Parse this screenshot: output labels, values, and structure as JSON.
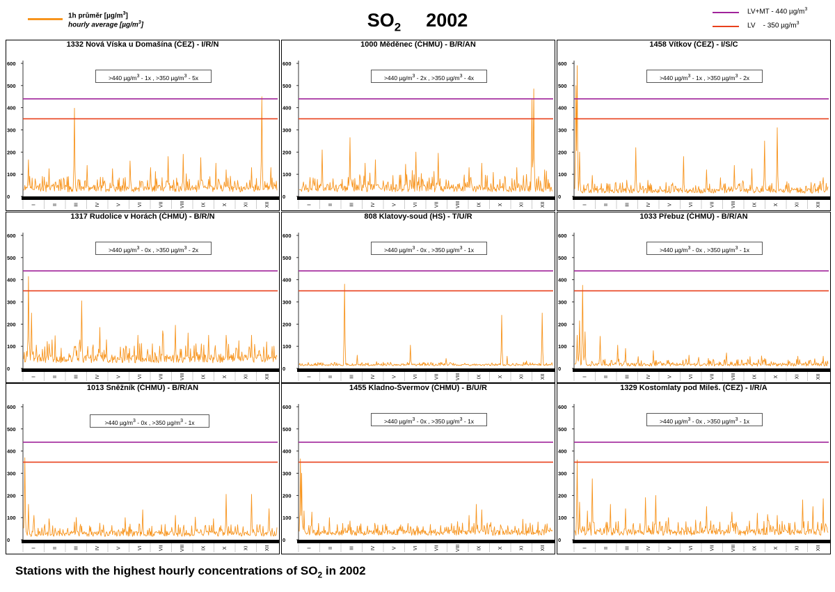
{
  "header": {
    "title_main": "SO",
    "title_sub": "2",
    "title_year": "2002"
  },
  "legend_left": {
    "line1_prefix": "1h průměr [µg/m",
    "line1_sup": "3",
    "line1_suffix": "]",
    "line2_prefix": "hourly average [µg/m",
    "line2_sup": "3",
    "line2_suffix": "]",
    "color": "#f7941d"
  },
  "legend_right": {
    "items": [
      {
        "prefix": "LV+MT - 440 µg/m",
        "sup": "3",
        "color": "#a0239a"
      },
      {
        "prefix": "LV    - 350 µg/m",
        "sup": "3",
        "color": "#e8401c"
      }
    ]
  },
  "caption": {
    "prefix": "Stations with the highest hourly concentrations of SO",
    "sub": "2",
    "suffix": " in 2002"
  },
  "chart_data": {
    "type": "line",
    "y_ticks": [
      "0",
      "100",
      "200",
      "300",
      "400",
      "500",
      "600"
    ],
    "ylim": [
      0,
      600
    ],
    "month_labels": [
      "I",
      "II",
      "III",
      "IV",
      "V",
      "VI",
      "VII",
      "VIII",
      "IX",
      "X",
      "XI",
      "XII"
    ],
    "limit_lines": [
      {
        "name": "LV+MT - 440 µg/m3",
        "value": 440,
        "color": "#a0239a"
      },
      {
        "name": "LV - 350 µg/m3",
        "value": 350,
        "color": "#e8401c"
      }
    ],
    "series_color": "#f7941d",
    "panels": [
      {
        "title": "1332 Nová Víska u Domašína (ČEZ) - I/R/N",
        "box": [
          ">440 µg/m",
          "3",
          " - 1x  ,  >350 µg/m",
          "3",
          " - 5x"
        ],
        "base": 20,
        "noise": 45,
        "peaks": [
          [
            0.02,
            165
          ],
          [
            0.1,
            125
          ],
          [
            0.2,
            398
          ],
          [
            0.25,
            140
          ],
          [
            0.35,
            125
          ],
          [
            0.42,
            160
          ],
          [
            0.5,
            130
          ],
          [
            0.57,
            180
          ],
          [
            0.63,
            190
          ],
          [
            0.7,
            175
          ],
          [
            0.76,
            150
          ],
          [
            0.8,
            120
          ],
          [
            0.9,
            130
          ],
          [
            0.94,
            450
          ],
          [
            0.975,
            130
          ]
        ]
      },
      {
        "title": "1000 Měděnec (ČHMÚ) - B/R/AN",
        "box": [
          ">440 µg/m",
          "3",
          " - 2x  ,  >350 µg/m",
          "3",
          " - 4x"
        ],
        "base": 20,
        "noise": 50,
        "peaks": [
          [
            0.09,
            210
          ],
          [
            0.2,
            265
          ],
          [
            0.26,
            150
          ],
          [
            0.3,
            165
          ],
          [
            0.42,
            145
          ],
          [
            0.46,
            200
          ],
          [
            0.55,
            195
          ],
          [
            0.67,
            130
          ],
          [
            0.72,
            150
          ],
          [
            0.86,
            130
          ],
          [
            0.92,
            440
          ],
          [
            0.925,
            485
          ],
          [
            0.97,
            120
          ]
        ]
      },
      {
        "title": "1458 Vítkov (ČEZ) - I/S/C",
        "box": [
          ">440 µg/m",
          "3",
          " - 1x  ,  >350 µg/m",
          "3",
          " - 2x"
        ],
        "base": 15,
        "noise": 30,
        "peaks": [
          [
            0.005,
            500
          ],
          [
            0.01,
            590
          ],
          [
            0.02,
            200
          ],
          [
            0.07,
            95
          ],
          [
            0.24,
            220
          ],
          [
            0.43,
            180
          ],
          [
            0.52,
            120
          ],
          [
            0.63,
            140
          ],
          [
            0.7,
            125
          ],
          [
            0.75,
            250
          ],
          [
            0.8,
            310
          ],
          [
            0.98,
            85
          ]
        ]
      },
      {
        "title": "1317 Rudolice v Horách (ČHMÚ) - B/R/N",
        "box": [
          ">440 µg/m",
          "3",
          " - 0x  ,  >350 µg/m",
          "3",
          " - 2x"
        ],
        "base": 25,
        "noise": 55,
        "peaks": [
          [
            0.02,
            415
          ],
          [
            0.03,
            250
          ],
          [
            0.1,
            110
          ],
          [
            0.23,
            305
          ],
          [
            0.3,
            185
          ],
          [
            0.45,
            150
          ],
          [
            0.55,
            170
          ],
          [
            0.6,
            195
          ],
          [
            0.65,
            160
          ],
          [
            0.73,
            150
          ],
          [
            0.8,
            150
          ],
          [
            0.85,
            125
          ],
          [
            0.9,
            150
          ],
          [
            0.96,
            120
          ]
        ]
      },
      {
        "title": "808 Klatovy-soud (HS) - T/U/R",
        "box": [
          ">440 µg/m",
          "3",
          " - 0x  ,  >350 µg/m",
          "3",
          " - 1x"
        ],
        "base": 12,
        "noise": 10,
        "peaks": [
          [
            0.18,
            380
          ],
          [
            0.23,
            60
          ],
          [
            0.44,
            105
          ],
          [
            0.58,
            45
          ],
          [
            0.8,
            240
          ],
          [
            0.82,
            55
          ],
          [
            0.96,
            250
          ]
        ]
      },
      {
        "title": "1033 Přebuz (ČHMÚ) - B/R/AN",
        "box": [
          ">440 µg/m",
          "3",
          " - 0x  ,  >350 µg/m",
          "3",
          " - 1x"
        ],
        "base": 10,
        "noise": 20,
        "peaks": [
          [
            0.01,
            150
          ],
          [
            0.02,
            215
          ],
          [
            0.03,
            375
          ],
          [
            0.04,
            165
          ],
          [
            0.1,
            145
          ],
          [
            0.17,
            105
          ],
          [
            0.2,
            90
          ],
          [
            0.31,
            80
          ],
          [
            0.45,
            60
          ],
          [
            0.6,
            70
          ],
          [
            0.75,
            45
          ],
          [
            0.88,
            55
          ],
          [
            0.98,
            55
          ]
        ]
      },
      {
        "title": "1013 Sněžník (ČHMÚ) - B/R/AN",
        "box": [
          ">440 µg/m",
          "3",
          " - 0x  ,  >350 µg/m",
          "3",
          " - 1x"
        ],
        "base": 15,
        "noise": 35,
        "peaks": [
          [
            0.005,
            370
          ],
          [
            0.02,
            160
          ],
          [
            0.04,
            110
          ],
          [
            0.1,
            95
          ],
          [
            0.2,
            80
          ],
          [
            0.3,
            75
          ],
          [
            0.4,
            100
          ],
          [
            0.47,
            135
          ],
          [
            0.6,
            110
          ],
          [
            0.75,
            95
          ],
          [
            0.8,
            205
          ],
          [
            0.9,
            205
          ],
          [
            0.97,
            140
          ]
        ]
      },
      {
        "title": "1455 Kladno-Švermov (ČHMÚ) - B/U/R",
        "box": [
          ">440 µg/m",
          "3",
          " - 0x  ,  >350 µg/m",
          "3",
          " - 1x"
        ],
        "base": 20,
        "noise": 35,
        "peaks": [
          [
            0.005,
            365
          ],
          [
            0.01,
            300
          ],
          [
            0.02,
            130
          ],
          [
            0.05,
            125
          ],
          [
            0.12,
            100
          ],
          [
            0.2,
            85
          ],
          [
            0.3,
            60
          ],
          [
            0.45,
            50
          ],
          [
            0.58,
            40
          ],
          [
            0.67,
            110
          ],
          [
            0.7,
            160
          ],
          [
            0.72,
            135
          ],
          [
            0.8,
            50
          ],
          [
            0.9,
            40
          ],
          [
            0.98,
            45
          ]
        ]
      },
      {
        "title": "1329 Kostomlaty pod Mileš. (ČEZ) - I/R/A",
        "box": [
          ">440 µg/m",
          "3",
          " - 0x  ,  >350 µg/m",
          "3",
          " - 1x"
        ],
        "base": 20,
        "noise": 40,
        "peaks": [
          [
            0.01,
            360
          ],
          [
            0.02,
            170
          ],
          [
            0.05,
            130
          ],
          [
            0.07,
            275
          ],
          [
            0.14,
            160
          ],
          [
            0.2,
            140
          ],
          [
            0.28,
            190
          ],
          [
            0.32,
            200
          ],
          [
            0.37,
            100
          ],
          [
            0.52,
            150
          ],
          [
            0.62,
            125
          ],
          [
            0.72,
            120
          ],
          [
            0.8,
            110
          ],
          [
            0.9,
            180
          ],
          [
            0.94,
            150
          ],
          [
            0.98,
            185
          ]
        ]
      }
    ]
  }
}
